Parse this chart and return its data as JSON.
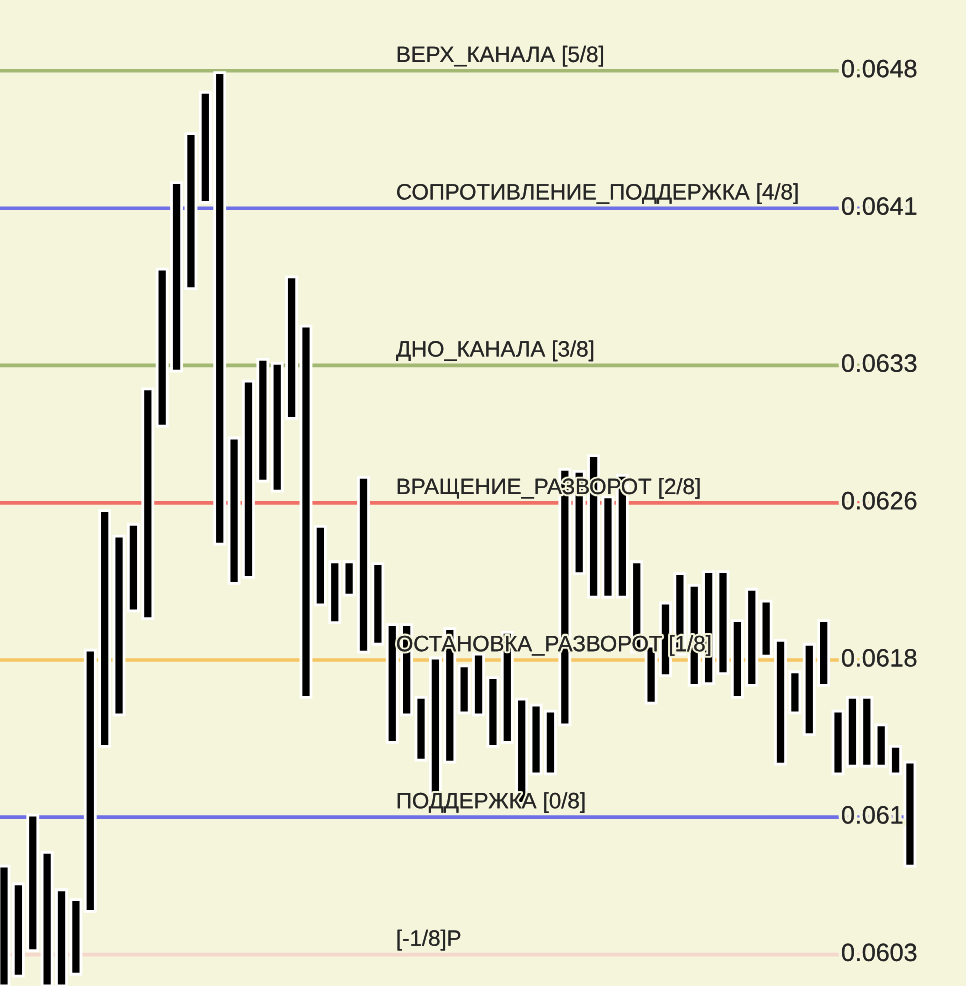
{
  "chart_data": {
    "type": "bar",
    "categories": [
      null,
      null,
      null,
      null,
      null,
      null,
      null,
      null,
      null,
      null,
      null,
      null,
      null,
      null,
      null,
      null,
      null,
      null,
      null,
      null,
      null,
      null,
      null,
      null,
      null,
      null,
      null,
      null,
      null,
      null,
      null,
      null,
      null,
      null,
      null,
      null,
      null,
      null,
      null,
      null,
      null,
      null,
      null,
      null,
      null,
      null,
      null,
      null,
      null,
      null,
      null,
      null,
      null,
      null,
      null,
      null,
      null,
      null,
      null,
      null,
      null,
      null,
      null,
      null
    ],
    "base": [
      0.06014,
      0.06019,
      0.06032,
      0.06014,
      0.06014,
      0.0602,
      0.06052,
      0.06136,
      0.06152,
      0.06205,
      0.06201,
      0.06299,
      0.06327,
      0.06369,
      0.06413,
      0.06239,
      0.06219,
      0.06222,
      0.06271,
      0.06266,
      0.06303,
      0.06161,
      0.06208,
      0.06199,
      0.06213,
      0.06184,
      0.06188,
      0.06138,
      0.06152,
      0.06129,
      0.06112,
      0.06128,
      0.06153,
      0.06152,
      0.06136,
      0.06138,
      0.06107,
      0.06122,
      0.06122,
      0.06147,
      0.06224,
      0.06212,
      0.06212,
      0.06212,
      0.06184,
      0.06158,
      0.06172,
      0.06183,
      0.06167,
      0.06168,
      0.06173,
      0.06161,
      0.06167,
      0.06182,
      0.06127,
      0.06153,
      0.06142,
      0.06167,
      0.06122,
      0.06126,
      0.06126,
      0.06126,
      0.06122,
      0.06075
    ],
    "values": [
      0.00061,
      0.00047,
      0.00069,
      0.00068,
      0.00049,
      0.00038,
      0.00133,
      0.0012,
      0.00091,
      0.00044,
      0.00117,
      0.0008,
      0.00096,
      0.00079,
      0.00056,
      0.0024,
      0.00074,
      0.001,
      0.00062,
      0.00065,
      0.00072,
      0.00189,
      0.0004,
      0.00031,
      0.00017,
      0.00089,
      0.00041,
      0.0006,
      0.00046,
      0.00032,
      0.00069,
      0.00068,
      0.00024,
      0.00031,
      0.00035,
      0.00056,
      0.00053,
      0.00035,
      0.00032,
      0.0013,
      0.00052,
      0.00072,
      0.00051,
      0.00062,
      0.00046,
      0.00029,
      0.00037,
      0.00041,
      0.00051,
      0.00057,
      0.00052,
      0.00039,
      0.00049,
      0.00028,
      0.00063,
      0.00021,
      0.00046,
      0.00033,
      0.00032,
      0.00035,
      0.00035,
      0.00021,
      0.00014,
      0.00053
    ],
    "color": "#000000",
    "ylim": [
      0.06014,
      0.06516
    ],
    "yticks": [
      0.0603,
      0.061,
      0.0618,
      0.0626,
      0.0633,
      0.0641,
      0.0648
    ],
    "tick_labels": "y",
    "grid": false,
    "ref_lines": [
      {
        "axis": "y",
        "value": 0.0648,
        "label": "ВЕРХ_КАНАЛА [5/8]",
        "color": "#a3b873"
      },
      {
        "axis": "y",
        "value": 0.0641,
        "label": "СОПРОТИВЛЕНИЕ_ПОДДЕРЖКА [4/8]",
        "color": "#7070e6"
      },
      {
        "axis": "y",
        "value": 0.0633,
        "label": "ДНО_КАНАЛА [3/8]",
        "color": "#a3b873"
      },
      {
        "axis": "y",
        "value": 0.0626,
        "label": "ВРАЩЕНИЕ_РАЗВОРОТ [2/8]",
        "color": "#f07068"
      },
      {
        "axis": "y",
        "value": 0.0618,
        "label": "ОСТАНОВКА_РАЗВОРОТ [1/8]",
        "color": "#f5c663"
      },
      {
        "axis": "y",
        "value": 0.061,
        "label": "ПОДДЕРЖКА [0/8]",
        "color": "#7070e6"
      },
      {
        "axis": "y",
        "value": 0.0603,
        "label": "[-1/8]Р",
        "color": "#f5d8cc"
      }
    ]
  }
}
